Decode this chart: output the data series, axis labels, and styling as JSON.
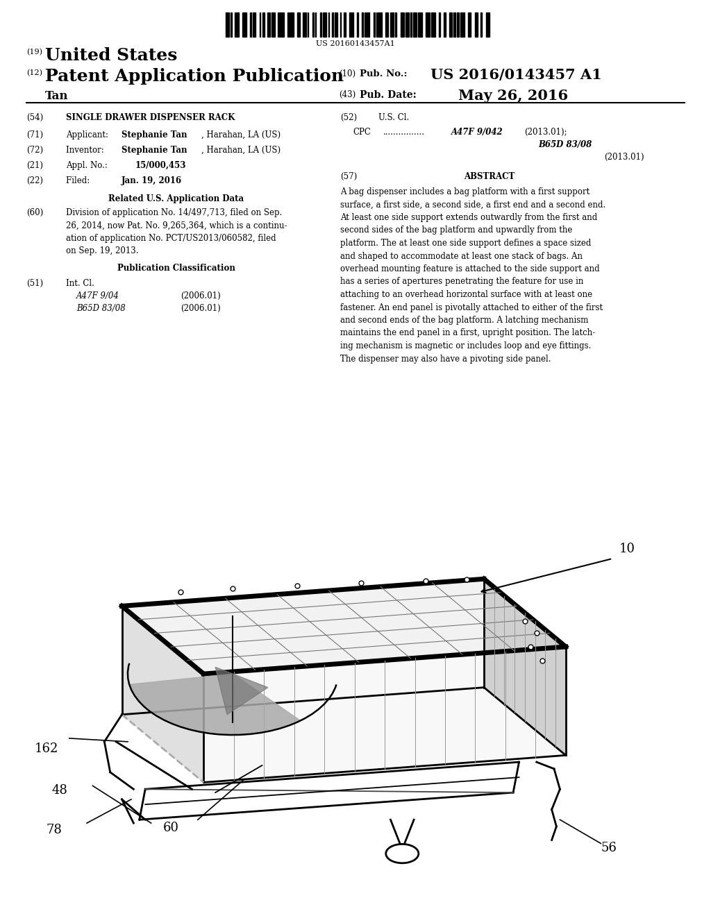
{
  "background_color": "#ffffff",
  "barcode_text": "US 20160143457A1",
  "header_19": "(19)",
  "header_19_text": "United States",
  "header_12": "(12)",
  "header_12_text": "Patent Application Publication",
  "header_10_label": "(10)",
  "header_10_text": "Pub. No.:",
  "header_10_value": "US 2016/0143457 A1",
  "header_43_label": "(43)",
  "header_43_text": "Pub. Date:",
  "header_43_value": "May 26, 2016",
  "inventor_name": "Tan",
  "field_54_label": "(54)",
  "field_54_text": "SINGLE DRAWER DISPENSER RACK",
  "field_71_label": "(71)",
  "field_71_prefix": "Applicant:",
  "field_71_bold": "Stephanie Tan",
  "field_71_rest": ", Harahan, LA (US)",
  "field_72_label": "(72)",
  "field_72_prefix": "Inventor:",
  "field_72_bold": "Stephanie Tan",
  "field_72_rest": ", Harahan, LA (US)",
  "field_21_label": "(21)",
  "field_21_text": "Appl. No.:",
  "field_21_bold": "15/000,453",
  "field_22_label": "(22)",
  "field_22_text": "Filed:",
  "field_22_bold": "Jan. 19, 2016",
  "related_header": "Related U.S. Application Data",
  "field_60_label": "(60)",
  "field_60_text": "Division of application No. 14/497,713, filed on Sep. 26, 2014, now Pat. No. 9,265,364, which is a continu-ation of application No. PCT/US2013/060582, filed on Sep. 19, 2013.",
  "pub_class_header": "Publication Classification",
  "field_51_label": "(51)",
  "field_51_text": "Int. Cl.",
  "field_51_class1": "A47F 9/04",
  "field_51_date1": "(2006.01)",
  "field_51_class2": "B65D 83/08",
  "field_51_date2": "(2006.01)",
  "field_52_label": "(52)",
  "field_52_text": "U.S. Cl.",
  "field_52_cpc": "CPC",
  "field_52_dots": "................",
  "field_52_class1_italic": "A47F 9/042",
  "field_52_class1_rest": "(2013.01);",
  "field_52_class2_italic": "B65D 83/08",
  "field_52_class2_date": "(2013.01)",
  "field_57_label": "(57)",
  "field_57_header": "ABSTRACT",
  "abstract_text": "A bag dispenser includes a bag platform with a first support surface, a first side, a second side, a first end and a second end. At least one side support extends outwardly from the first and second sides of the bag platform and upwardly from the platform. The at least one side support defines a space sized and shaped to accommodate at least one stack of bags. An overhead mounting feature is attached to the side support and has a series of apertures penetrating the feature for use in attaching to an overhead horizontal surface with at least one fastener. An end panel is pivotally attached to either of the first and second ends of the bag platform. A latching mechanism maintains the end panel in a first, upright position. The latching mechanism is magnetic or includes loop and eye fittings. The dispenser may also have a pivoting side panel."
}
